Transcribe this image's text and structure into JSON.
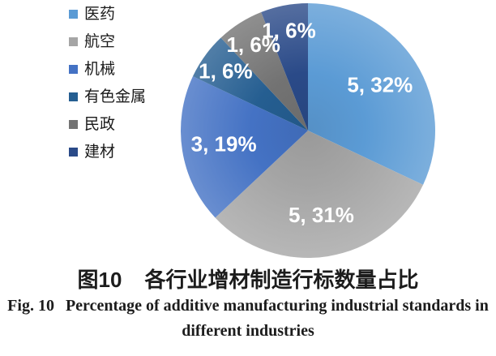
{
  "figure": {
    "caption_zh": {
      "fig_label": "图10",
      "title": "各行业增材制造行标数量占比"
    },
    "caption_en": {
      "fig_label": "Fig. 10",
      "line1": "Percentage of additive manufacturing industrial standards in",
      "line2": "different industries"
    }
  },
  "chart_data": {
    "type": "pie",
    "title": "",
    "start_angle_deg": 0,
    "direction": "clockwise",
    "legend_position": "left",
    "grid": false,
    "data_label_format": "value, percent",
    "data_label_color": "#ffffff",
    "slices": [
      {
        "name": "医药",
        "value": 5,
        "pct": 32,
        "label": "5, 32%",
        "color": "#5B9BD5"
      },
      {
        "name": "航空",
        "value": 5,
        "pct": 31,
        "label": "5, 31%",
        "color": "#A5A5A5"
      },
      {
        "name": "机械",
        "value": 3,
        "pct": 19,
        "label": "3, 19%",
        "color": "#4472C4"
      },
      {
        "name": "有色金属",
        "value": 1,
        "pct": 6,
        "label": "1, 6%",
        "color": "#255E91"
      },
      {
        "name": "民政",
        "value": 1,
        "pct": 6,
        "label": "1, 6%",
        "color": "#737373"
      },
      {
        "name": "建材",
        "value": 1,
        "pct": 6,
        "label": "1, 6%",
        "color": "#2A4A88"
      }
    ]
  }
}
